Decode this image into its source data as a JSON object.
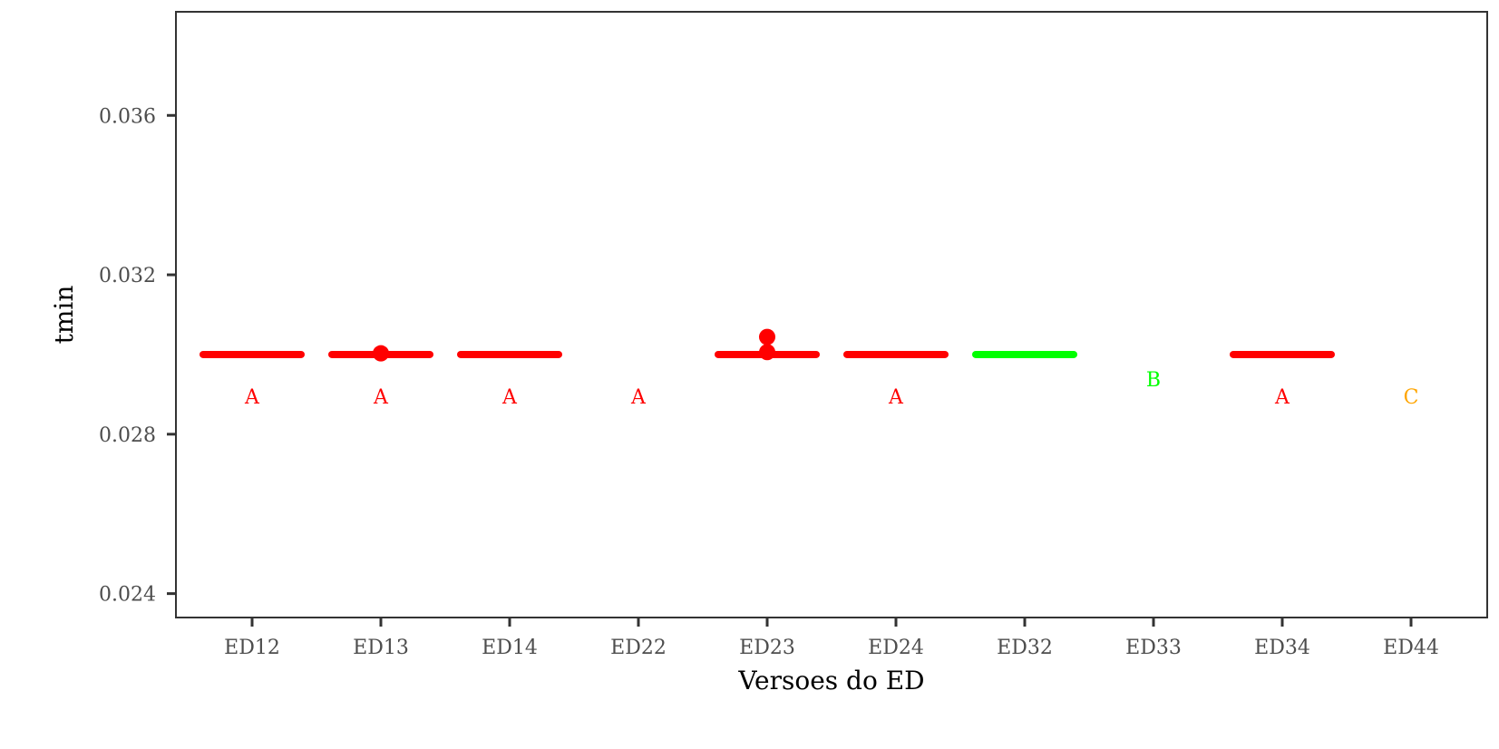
{
  "chart_data": {
    "type": "boxplot",
    "xlabel": "Versoes do ED",
    "ylabel": "tmin",
    "ylim": [
      0.0234,
      0.0386
    ],
    "y_ticks": [
      0.024,
      0.028,
      0.032,
      0.036
    ],
    "y_tick_labels": [
      "0.024",
      "0.028",
      "0.032",
      "0.036"
    ],
    "categories": [
      "ED12",
      "ED13",
      "ED14",
      "ED22",
      "ED23",
      "ED24",
      "ED32",
      "ED33",
      "ED34",
      "ED44"
    ],
    "medians": [
      0.03,
      0.03,
      0.03,
      null,
      0.03,
      0.03,
      0.03,
      null,
      0.03,
      null
    ],
    "outliers": [
      [],
      [
        0.03003
      ],
      [],
      [],
      [
        0.03044,
        0.03006
      ],
      [],
      [],
      [],
      [],
      []
    ],
    "group_letters": [
      "A",
      "A",
      "A",
      "A",
      "",
      "A",
      "",
      "B",
      "A",
      "C"
    ],
    "group_letter_values": [
      0.02895,
      0.02895,
      0.02895,
      0.02895,
      null,
      0.02895,
      null,
      0.02938,
      0.02895,
      0.02895
    ],
    "group_colors": [
      "#ff0000",
      "#ff0000",
      "#ff0000",
      "#ff0000",
      "#ff0000",
      "#ff0000",
      "#00ff00",
      "#00ff00",
      "#ff0000",
      "#ffa500"
    ],
    "grid": false,
    "legend": "none"
  }
}
